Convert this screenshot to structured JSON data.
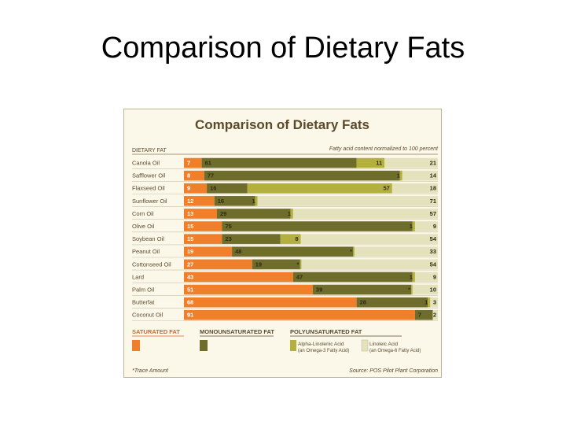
{
  "slide": {
    "title": "Comparison of Dietary Fats"
  },
  "colors": {
    "saturated": "#ef7f2b",
    "monounsaturated": "#6f6d2c",
    "alpha": "#b3b03f",
    "linoleic": "#e4e2bc",
    "text_brown": "#5b4a2a",
    "accent_orange": "#d5672a"
  },
  "chart_data": {
    "type": "bar",
    "stacked": true,
    "title": "Comparison of Dietary Fats",
    "subtitle": "Fatty acid content normalized to 100 percent",
    "row_header": "DIETARY FAT",
    "categories": [
      "Canola Oil",
      "Safflower Oil",
      "Flaxseed Oil",
      "Sunflower Oil",
      "Corn Oil",
      "Olive Oil",
      "Soybean Oil",
      "Peanut Oil",
      "Cottonseed Oil",
      "Lard",
      "Palm Oil",
      "Butterfat",
      "Coconut Oil"
    ],
    "series": [
      {
        "name": "Saturated Fat",
        "values": [
          7,
          8,
          9,
          12,
          13,
          15,
          15,
          19,
          27,
          43,
          51,
          68,
          91
        ]
      },
      {
        "name": "Monounsaturated Fat",
        "values": [
          61,
          77,
          16,
          16,
          29,
          75,
          23,
          48,
          19,
          47,
          39,
          28,
          7
        ]
      },
      {
        "name": "Alpha-Linolenic Acid",
        "values": [
          11,
          1,
          57,
          1,
          1,
          1,
          8,
          0.5,
          0.5,
          1,
          0.5,
          1,
          0
        ]
      },
      {
        "name": "Linoleic Acid",
        "values": [
          21,
          14,
          18,
          71,
          57,
          9,
          54,
          33,
          54,
          9,
          10,
          3,
          2
        ]
      }
    ],
    "labels": [
      [
        "7",
        "61",
        "11",
        "21"
      ],
      [
        "8",
        "77",
        "1",
        "14"
      ],
      [
        "9",
        "16",
        "57",
        "18"
      ],
      [
        "12",
        "16",
        "1",
        "71"
      ],
      [
        "13",
        "29",
        "1",
        "57"
      ],
      [
        "15",
        "75",
        "1",
        "9"
      ],
      [
        "15",
        "23",
        "8",
        "54"
      ],
      [
        "19",
        "48",
        "*",
        "33"
      ],
      [
        "27",
        "19",
        "*",
        "54"
      ],
      [
        "43",
        "47",
        "1",
        "9"
      ],
      [
        "51",
        "39",
        "*",
        "10"
      ],
      [
        "68",
        "28",
        "1",
        "3"
      ],
      [
        "91",
        "7",
        "",
        "2"
      ]
    ],
    "xlim": [
      0,
      100
    ],
    "legend": {
      "saturated": "SATURATED FAT",
      "monounsaturated": "MONOUNSATURATED FAT",
      "polyunsaturated": "POLYUNSATURATED FAT",
      "alpha_line1": "Alpha-Linolenic Acid",
      "alpha_line2": "(an Omega-3 Fatty Acid)",
      "linoleic_line1": "Linoleic Acid",
      "linoleic_line2": "(an Omega-6 Fatty Acid)"
    },
    "footnote": "*Trace Amount",
    "source": "Source: POS Pilot Plant Corporation"
  }
}
